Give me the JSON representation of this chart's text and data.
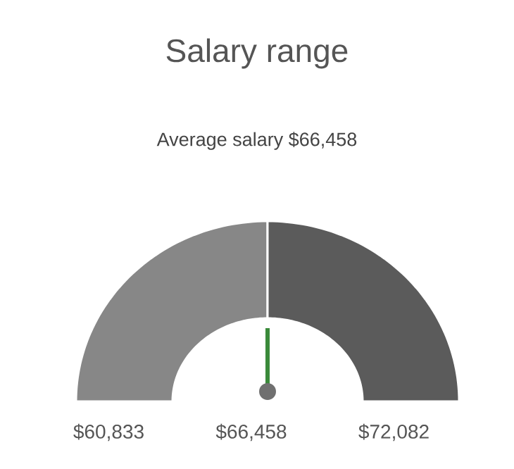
{
  "chart_data": {
    "type": "donut",
    "title": "Salary range",
    "subtitle": "Average salary $66,458",
    "categories": [
      null,
      null
    ],
    "values": [
      50,
      50
    ],
    "colors": [
      "#878787",
      "#5b5b5b"
    ],
    "annotations": [
      "$60,833",
      "$66,458",
      "$72,082"
    ]
  }
}
